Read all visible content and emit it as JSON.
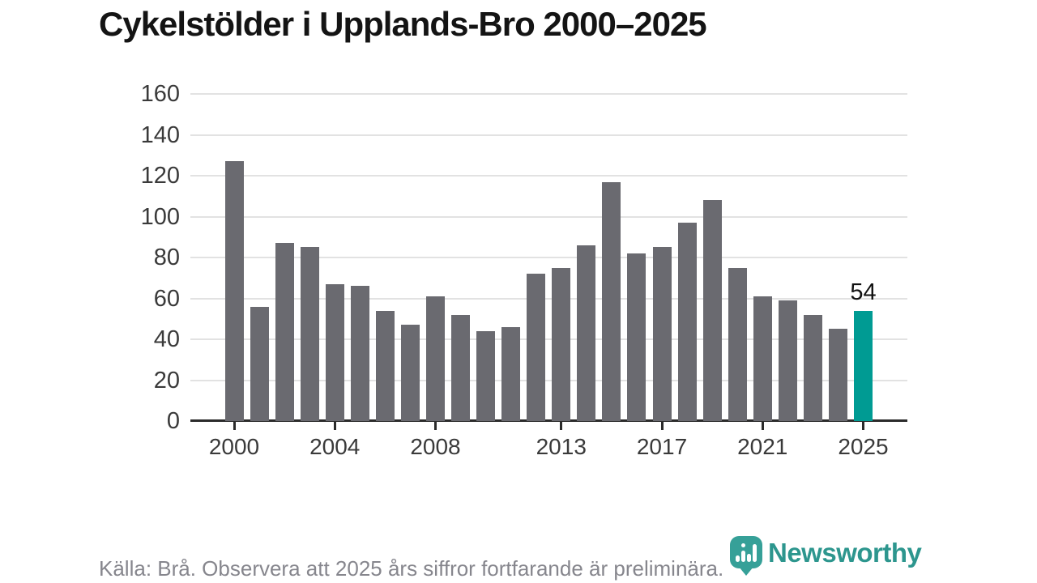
{
  "title": "Cykelstölder i Upplands-Bro 2000–2025",
  "footer": {
    "source_note": "Källa: Brå. Observera att 2025 års siffror fortfarande är preliminära.",
    "brand": "Newsworthy"
  },
  "colors": {
    "bar": "#6a6a70",
    "highlight_bar": "#009b93",
    "grid": "#e2e2e2",
    "axis": "#2b2b2b",
    "tick_label": "#3a3a3a",
    "title_text": "#141414",
    "footer_text": "#86868d",
    "brand_teal": "#2d968e"
  },
  "chart_data": {
    "type": "bar",
    "title": "Cykelstölder i Upplands-Bro 2000–2025",
    "categories": [
      2000,
      2001,
      2002,
      2003,
      2004,
      2005,
      2006,
      2007,
      2008,
      2009,
      2010,
      2011,
      2012,
      2013,
      2014,
      2015,
      2016,
      2017,
      2018,
      2019,
      2020,
      2021,
      2022,
      2023,
      2024,
      2025
    ],
    "values": [
      127,
      56,
      87,
      85,
      67,
      66,
      54,
      47,
      61,
      52,
      44,
      46,
      72,
      75,
      86,
      117,
      82,
      85,
      97,
      108,
      75,
      61,
      59,
      52,
      45,
      54
    ],
    "highlight_index": 25,
    "highlight_label": "54",
    "y_ticks": [
      0,
      20,
      40,
      60,
      80,
      100,
      120,
      140,
      160
    ],
    "x_tick_years": [
      2000,
      2004,
      2008,
      2013,
      2017,
      2021,
      2025
    ],
    "ylim": [
      0,
      160
    ],
    "grid": true,
    "legend_position": "none"
  }
}
